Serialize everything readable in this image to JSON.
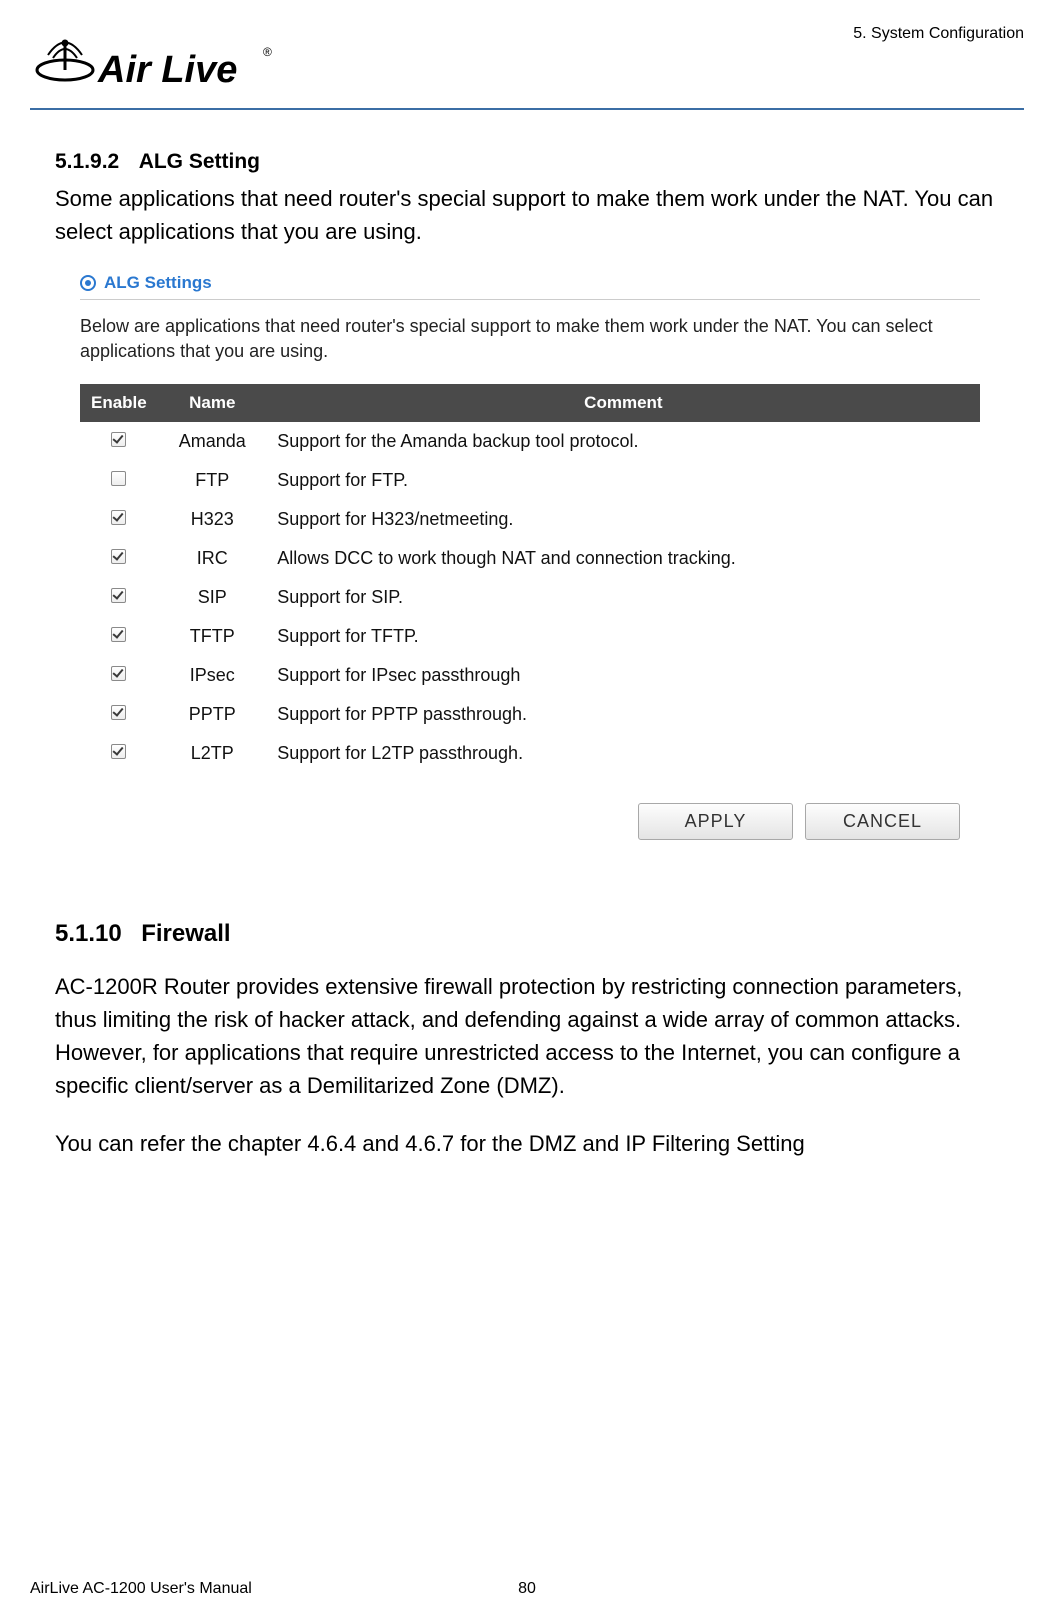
{
  "header": {
    "chapter": "5. System Configuration",
    "logo_text": "AirLive"
  },
  "section_5192": {
    "number": "5.1.9.2",
    "title": "ALG Setting",
    "intro": "Some applications that need router's special support to make them work under the NAT. You can select applications that you are using."
  },
  "alg_panel": {
    "title": "ALG Settings",
    "intro": "Below are applications that need router's special support to make them work under the NAT. You can select applications that you are using.",
    "columns": {
      "enable": "Enable",
      "name": "Name",
      "comment": "Comment"
    },
    "rows": [
      {
        "enabled": true,
        "name": "Amanda",
        "comment": "Support for the Amanda backup tool protocol."
      },
      {
        "enabled": false,
        "name": "FTP",
        "comment": "Support for FTP."
      },
      {
        "enabled": true,
        "name": "H323",
        "comment": "Support for H323/netmeeting."
      },
      {
        "enabled": true,
        "name": "IRC",
        "comment": "Allows DCC to work though NAT and connection tracking."
      },
      {
        "enabled": true,
        "name": "SIP",
        "comment": "Support for SIP."
      },
      {
        "enabled": true,
        "name": "TFTP",
        "comment": "Support for TFTP."
      },
      {
        "enabled": true,
        "name": "IPsec",
        "comment": "Support for IPsec passthrough"
      },
      {
        "enabled": true,
        "name": "PPTP",
        "comment": "Support for PPTP passthrough."
      },
      {
        "enabled": true,
        "name": "L2TP",
        "comment": "Support for L2TP passthrough."
      }
    ],
    "buttons": {
      "apply": "APPLY",
      "cancel": "CANCEL"
    }
  },
  "section_5110": {
    "number": "5.1.10",
    "title": "Firewall",
    "para1": "AC-1200R Router provides extensive firewall protection by restricting connection parameters, thus limiting the risk of hacker attack, and defending against a wide array of common attacks. However, for applications that require unrestricted access to the Internet, you can configure a specific client/server as a Demilitarized Zone (DMZ).",
    "para2": "You can refer the chapter 4.6.4 and 4.6.7 for the DMZ and IP Filtering Setting"
  },
  "footer": {
    "manual": "AirLive AC-1200 User's Manual",
    "page": "80"
  }
}
